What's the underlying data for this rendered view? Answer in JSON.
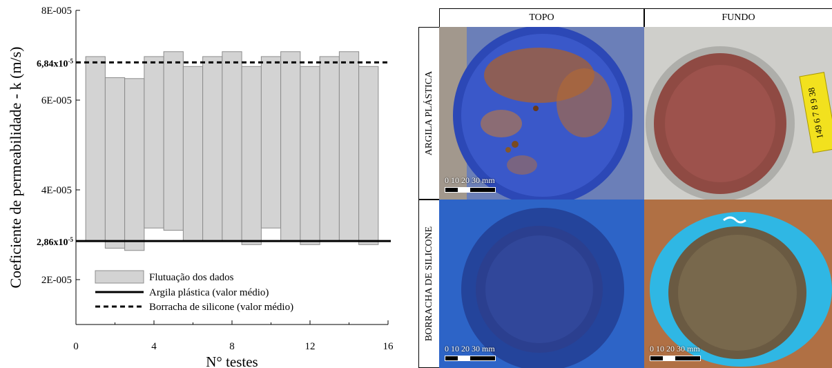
{
  "chart_data": {
    "type": "bar",
    "ylabel": "Coeficiente de permeabilidade - k (m/s)",
    "xlabel": "N° testes",
    "xlim": [
      0,
      16
    ],
    "ylim": [
      1e-05,
      8e-05
    ],
    "x_ticks": [
      0,
      4,
      8,
      12,
      16
    ],
    "x_tick_labels": [
      "0",
      "4",
      "8",
      "12",
      "16"
    ],
    "y_ticks": [
      2e-05,
      4e-05,
      6e-05,
      8e-05
    ],
    "y_tick_labels": [
      "2E-005",
      "4E-005",
      "6E-005",
      "8E-005"
    ],
    "bars": [
      {
        "test": 1,
        "low": 2.86e-05,
        "high": 6.97e-05
      },
      {
        "test": 2,
        "low": 2.7e-05,
        "high": 6.5e-05
      },
      {
        "test": 3,
        "low": 2.65e-05,
        "high": 6.48e-05
      },
      {
        "test": 4,
        "low": 3.15e-05,
        "high": 6.97e-05
      },
      {
        "test": 5,
        "low": 3.1e-05,
        "high": 7.08e-05
      },
      {
        "test": 6,
        "low": 2.86e-05,
        "high": 6.75e-05
      },
      {
        "test": 7,
        "low": 2.86e-05,
        "high": 6.97e-05
      },
      {
        "test": 8,
        "low": 2.86e-05,
        "high": 7.08e-05
      },
      {
        "test": 9,
        "low": 2.78e-05,
        "high": 6.75e-05
      },
      {
        "test": 10,
        "low": 3.15e-05,
        "high": 6.97e-05
      },
      {
        "test": 11,
        "low": 2.86e-05,
        "high": 7.08e-05
      },
      {
        "test": 12,
        "low": 2.78e-05,
        "high": 6.75e-05
      },
      {
        "test": 13,
        "low": 2.86e-05,
        "high": 6.97e-05
      },
      {
        "test": 14,
        "low": 2.86e-05,
        "high": 7.08e-05
      },
      {
        "test": 15,
        "low": 2.78e-05,
        "high": 6.75e-05
      }
    ],
    "mean_lines": [
      {
        "name": "Argila plástica (valor médio)",
        "value": 2.86e-05,
        "label_base": "2,86x10",
        "label_exp": "-5",
        "style": "solid"
      },
      {
        "name": "Borracha de silicone (valor médio)",
        "value": 6.84e-05,
        "label_base": "6,84x10",
        "label_exp": "-5",
        "style": "dashed"
      }
    ],
    "legend": {
      "placement": "bottom-left",
      "entries": [
        "Flutuação dos dados",
        "Argila plástica (valor médio)",
        "Borracha de silicone (valor médio)"
      ]
    },
    "colors": {
      "bar_fill": "#d3d3d3",
      "bar_stroke": "#8c8c8c",
      "lines": "#000000"
    }
  },
  "photo_grid": {
    "columns": [
      "TOPO",
      "FUNDO"
    ],
    "rows": [
      "ARGILA PLÁSTICA",
      "BORRACHA DE SILICONE"
    ],
    "scale_bar_label": "0  10  20  30 mm",
    "ruler_text": "149  6 7 8 9 38"
  }
}
